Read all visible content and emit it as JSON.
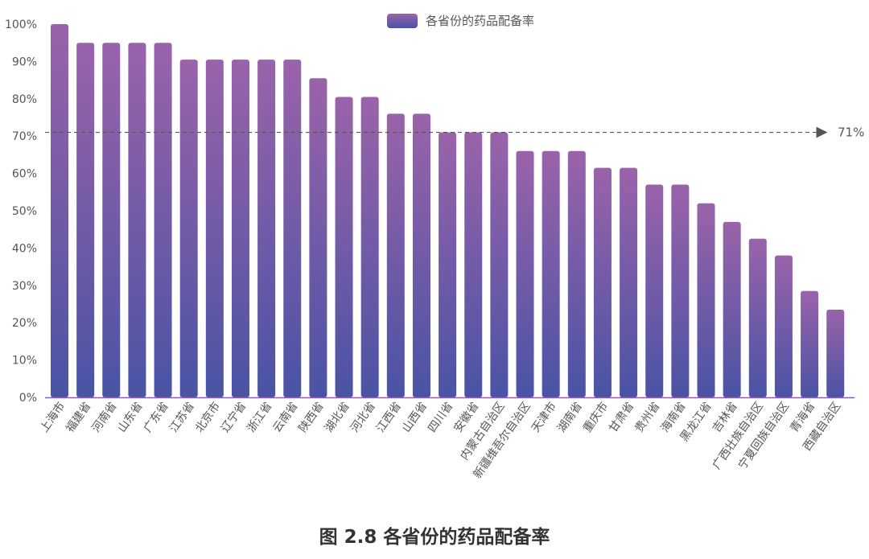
{
  "caption": "图 2.8 各省份的药品配备率",
  "colors": {
    "bar_top": "#9a63aa",
    "bar_bottom": "#4a53a5",
    "axis": "#8a5fa8",
    "text": "#555555",
    "ref_line": "#555555"
  },
  "chart_data": {
    "type": "bar",
    "title": "",
    "legend": {
      "label": "各省份的药品配备率",
      "position": "top-center"
    },
    "ylim": [
      0,
      100
    ],
    "y_ticks": [
      "0%",
      "10%",
      "20%",
      "30%",
      "40%",
      "50%",
      "60%",
      "70%",
      "80%",
      "90%",
      "100%"
    ],
    "categories": [
      "上海市",
      "福建省",
      "河南省",
      "山东省",
      "广东省",
      "江苏省",
      "北京市",
      "辽宁省",
      "浙江省",
      "云南省",
      "陕西省",
      "湖北省",
      "河北省",
      "江西省",
      "山西省",
      "四川省",
      "安徽省",
      "内蒙古自治区",
      "新疆维吾尔自治区",
      "天津市",
      "湖南省",
      "重庆市",
      "甘肃省",
      "贵州省",
      "海南省",
      "黑龙江省",
      "吉林省",
      "广西壮族自治区",
      "宁夏回族自治区",
      "青海省",
      "西藏自治区"
    ],
    "values": [
      100,
      95,
      95,
      95,
      95,
      90.5,
      90.5,
      90.5,
      90.5,
      90.5,
      85.5,
      80.5,
      80.5,
      76,
      76,
      71,
      71,
      71,
      66,
      66,
      66,
      61.5,
      61.5,
      57,
      57,
      52,
      47,
      42.5,
      38,
      28.5,
      23.5
    ],
    "reference_line": {
      "value": 71,
      "label": "71%"
    },
    "grid": false
  }
}
